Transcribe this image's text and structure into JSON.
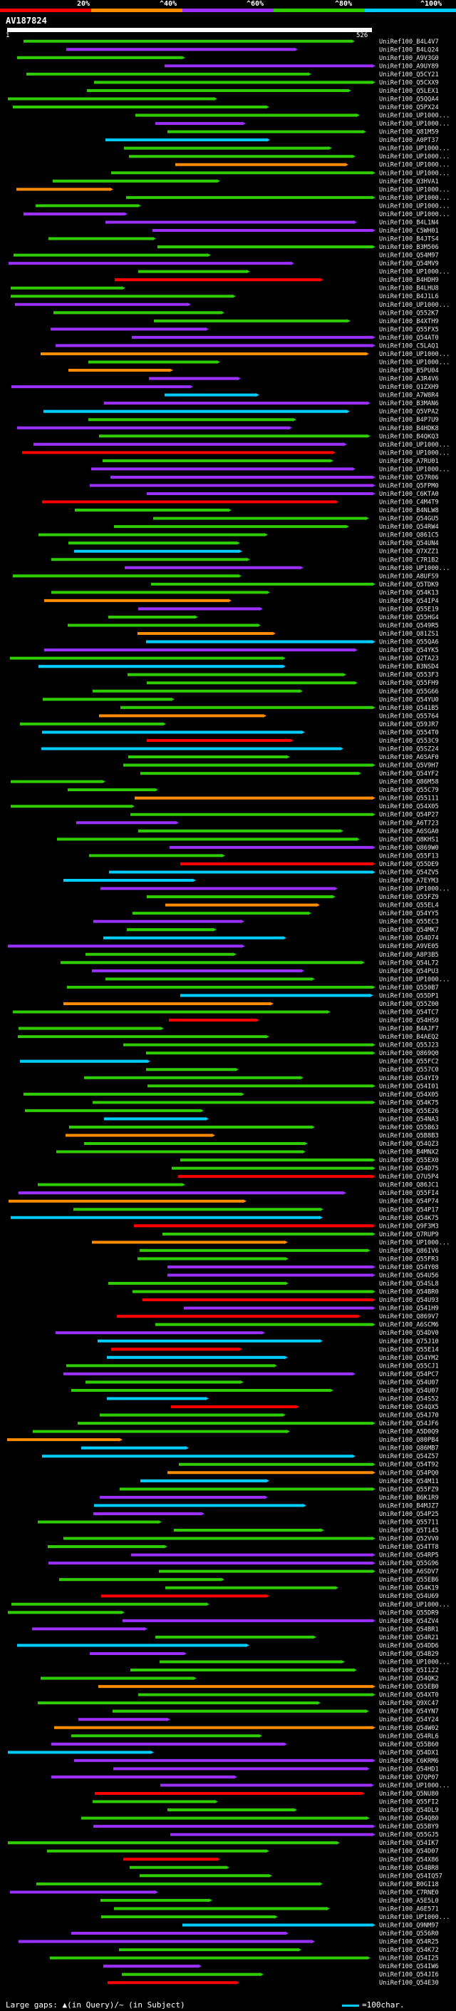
{
  "legend": {
    "labels": [
      "20%",
      "40%",
      "60%",
      "80%",
      "100%"
    ],
    "label_prefix": [
      "",
      "^",
      "^",
      "^",
      "^"
    ],
    "colors": [
      "#ff0000",
      "#ff8c00",
      "#9b30ff",
      "#2ecc00",
      "#00ccff"
    ]
  },
  "query": {
    "title": "AV187824",
    "ruler_start": "1",
    "ruler_end": "526"
  },
  "footer": {
    "left": "Large gaps: ▲(in Query)/~ (in Subject)",
    "right": "=100char."
  },
  "chart_data": {
    "type": "alignment",
    "query_length": 526,
    "hits": [
      "UniRef100_B4L4V7",
      "UniRef100_B4LQ24",
      "UniRef100_A9V3G0",
      "UniRef100_A9UY89",
      "UniRef100_Q5CY21",
      "UniRef100_Q5CXX9",
      "UniRef100_Q5LEX1",
      "UniRef100_Q5QQA4",
      "UniRef100_Q5PX24",
      "UniRef100_UP1000...",
      "UniRef100_UP1000...",
      "UniRef100_Q81M59",
      "UniRef100_A0PT37",
      "UniRef100_UP1000...",
      "UniRef100_UP1000...",
      "UniRef100_UP1000...",
      "UniRef100_UP1000...",
      "UniRef100_Q3HVA1",
      "UniRef100_UP1000...",
      "UniRef100_UP1000...",
      "UniRef100_UP1000...",
      "UniRef100_UP1000...",
      "UniRef100_B4L1N4",
      "UniRef100_C5WH01",
      "UniRef100_B4JTS4",
      "UniRef100_B3M506",
      "UniRef100_Q54M97",
      "UniRef100_Q54MV9",
      "UniRef100_UP1000...",
      "UniRef100_B4HDH9",
      "UniRef100_B4LHU8",
      "UniRef100_B4J1L6",
      "UniRef100_UP1000...",
      "UniRef100_Q552K7",
      "UniRef100_B4XTH9",
      "UniRef100_Q55FX5",
      "UniRef100_Q54AT0",
      "UniRef100_C5LAQ1",
      "UniRef100_UP1000...",
      "UniRef100_UP1000...",
      "UniRef100_B5PU04",
      "UniRef100_A3R4V6",
      "UniRef100_Q1ZXH9",
      "UniRef100_A7W8R4",
      "UniRef100_B3MAN6",
      "UniRef100_Q5VPA2",
      "UniRef100_B4P7U9",
      "UniRef100_B4HDK8",
      "UniRef100_B4QKQ3",
      "UniRef100_UP1000...",
      "UniRef100_UP1000...",
      "UniRef100_A7RU01",
      "UniRef100_UP1000...",
      "UniRef100_Q57R06",
      "UniRef100_Q5FPM0",
      "UniRef100_C6KTA0",
      "UniRef100_C4M4T9",
      "UniRef100_B4NLW8",
      "UniRef100_Q54GU5",
      "UniRef100_Q54RW4",
      "UniRef100_Q861C5",
      "UniRef100_Q54UN4",
      "UniRef100_Q7XZZ1",
      "UniRef100_C7R1B2",
      "UniRef100_UP1000...",
      "UniRef100_A8UFS9",
      "UniRef100_Q5TDK9",
      "UniRef100_Q54K13",
      "UniRef100_Q54IP4",
      "UniRef100_Q55E19",
      "UniRef100_Q55HG4",
      "UniRef100_Q549R5",
      "UniRef100_Q81ZS1",
      "UniRef100_Q55QA6",
      "UniRef100_Q54YK5",
      "UniRef100_Q2TA23",
      "UniRef100_B3NSD4",
      "UniRef100_Q553F3",
      "UniRef100_Q55FH9",
      "UniRef100_Q55G66",
      "UniRef100_Q54YU0",
      "UniRef100_Q541B5",
      "UniRef100_Q55764",
      "UniRef100_Q59JR7",
      "UniRef100_Q554T0",
      "UniRef100_Q553C9",
      "UniRef100_Q5SZ24",
      "UniRef100_A6SAF0",
      "UniRef100_Q5V9H7",
      "UniRef100_Q54YF2",
      "UniRef100_Q86M58",
      "UniRef100_Q55C79",
      "UniRef100_Q55111",
      "UniRef100_Q54X05",
      "UniRef100_Q54P27",
      "UniRef100_A6T723",
      "UniRef100_A6SGA0",
      "UniRef100_Q8KHS1",
      "UniRef100_Q869W0",
      "UniRef100_Q55F13",
      "UniRef100_Q55DE9",
      "UniRef100_Q54ZV5",
      "UniRef100_A7EYM3",
      "UniRef100_UP1000...",
      "UniRef100_Q55FZ9",
      "UniRef100_Q55EL4",
      "UniRef100_Q54YY5",
      "UniRef100_Q55EC3",
      "UniRef100_Q54MK7",
      "UniRef100_Q54D74",
      "UniRef100_A9VE05",
      "UniRef100_A8P3B5",
      "UniRef100_Q54L72",
      "UniRef100_Q54PU3",
      "UniRef100_UP1000...",
      "UniRef100_Q550B7",
      "UniRef100_Q55DP1",
      "UniRef100_Q55Z00",
      "UniRef100_Q54TC7",
      "UniRef100_Q54HS0",
      "UniRef100_B4AJF7",
      "UniRef100_B4AEQ2",
      "UniRef100_Q55J23",
      "UniRef100_Q869Q0",
      "UniRef100_Q55FC2",
      "UniRef100_Q557C0",
      "UniRef100_Q54YI9",
      "UniRef100_Q54I01",
      "UniRef100_Q54X05",
      "UniRef100_Q54K75",
      "UniRef100_Q55E26",
      "UniRef100_Q54NA3",
      "UniRef100_Q55B63",
      "UniRef100_Q5B8B3",
      "UniRef100_Q54QZ3",
      "UniRef100_B4MNX2",
      "UniRef100_Q55EX0",
      "UniRef100_Q54D75",
      "UniRef100_Q7U5P4",
      "UniRef100_Q86JC1",
      "UniRef100_Q55FI4",
      "UniRef100_Q54P74",
      "UniRef100_Q54P17",
      "UniRef100_Q54K75",
      "UniRef100_Q9F3M3",
      "UniRef100_Q7RUP9",
      "UniRef100_UP1000...",
      "UniRef100_Q86IV6",
      "UniRef100_Q55FR3",
      "UniRef100_Q54Y08",
      "UniRef100_Q54U56",
      "UniRef100_Q54SL8",
      "UniRef100_Q54BR0",
      "UniRef100_Q54U93",
      "UniRef100_Q541H9",
      "UniRef100_Q869V7",
      "UniRef100_A6SCM6",
      "UniRef100_Q54DV0",
      "UniRef100_Q75J10",
      "UniRef100_Q55E14",
      "UniRef100_Q54YM2",
      "UniRef100_Q55CJ1",
      "UniRef100_Q54PC7",
      "UniRef100_Q54U07",
      "UniRef100_Q54U07",
      "UniRef100_Q54S52",
      "UniRef100_Q54QX5",
      "UniRef100_Q54J70",
      "UniRef100_Q54JF6",
      "UniRef100_A5D0Q9",
      "UniRef100_Q80PB4",
      "UniRef100_Q86MB7",
      "UniRef100_Q54Z57",
      "UniRef100_Q54T92",
      "UniRef100_Q54PQ0",
      "UniRef100_Q54M11",
      "UniRef100_Q55FZ9",
      "UniRef100_B6K1R9",
      "UniRef100_B4MJZ7",
      "UniRef100_Q54P25",
      "UniRef100_Q55711",
      "UniRef100_Q5T145",
      "UniRef100_Q52VV0",
      "UniRef100_Q54TT8",
      "UniRef100_Q54RP5",
      "UniRef100_Q55G96",
      "UniRef100_A6SDV7",
      "UniRef100_Q55EB6",
      "UniRef100_Q54K19",
      "UniRef100_Q54U69",
      "UniRef100_UP1000...",
      "UniRef100_Q55DR9",
      "UniRef100_Q54ZV4",
      "UniRef100_Q54BR1",
      "UniRef100_Q54R21",
      "UniRef100_Q54DD6",
      "UniRef100_Q54B29",
      "UniRef100_UP1000...",
      "UniRef100_Q5I122",
      "UniRef100_Q54QK2",
      "UniRef100_Q55EB0",
      "UniRef100_Q54XT0",
      "UniRef100_Q9XC47",
      "UniRef100_Q54YN7",
      "UniRef100_Q54Y24",
      "UniRef100_Q54W02",
      "UniRef100_Q54RL6",
      "UniRef100_Q55B60",
      "UniRef100_Q54DX1",
      "UniRef100_C6KRM6",
      "UniRef100_Q54HD1",
      "UniRef100_Q7QP07",
      "UniRef100_UP1000...",
      "UniRef100_Q5NU80",
      "UniRef100_Q55FI2",
      "UniRef100_Q54DL9",
      "UniRef100_Q54Q80",
      "UniRef100_Q55BY9",
      "UniRef100_Q55GJ5",
      "UniRef100_Q54IK7",
      "UniRef100_Q54D07",
      "UniRef100_Q54X86",
      "UniRef100_Q54BR8",
      "UniRef100_Q54IQ57",
      "UniRef100_B0GI18",
      "UniRef100_C7RNE0",
      "UniRef100_A5E5L0",
      "UniRef100_A6E571",
      "UniRef100_UP1000...",
      "UniRef100_Q9NM97",
      "UniRef100_Q556R0",
      "UniRef100_Q54R25",
      "UniRef100_Q54K72",
      "UniRef100_Q54I25",
      "UniRef100_Q54IW6",
      "UniRef100_Q54JI6",
      "UniRef100_Q54E30"
    ]
  }
}
